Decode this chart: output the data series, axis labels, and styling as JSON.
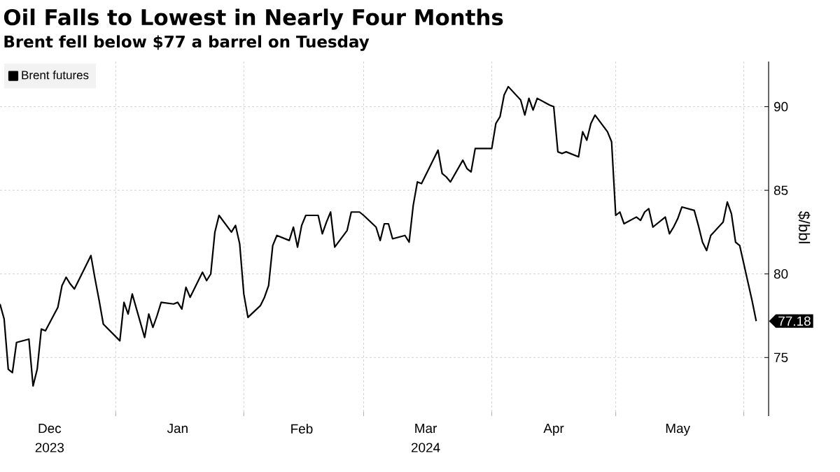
{
  "chart_data": {
    "type": "line",
    "title": "Oil Falls to Lowest in Nearly Four Months",
    "subtitle": "Brent fell below $77 a barrel on Tuesday",
    "ylabel": "$/bbl",
    "xlim": [
      "2023-12-04",
      "2024-06-07"
    ],
    "ylim": [
      71.5,
      92.7
    ],
    "yticks": [
      75,
      80,
      85,
      90
    ],
    "xticks": [
      {
        "value": "2024-01-01",
        "label": null
      },
      {
        "value": "2024-02-01",
        "label": null
      },
      {
        "value": "2024-03-01",
        "label": null
      },
      {
        "value": "2024-04-01",
        "label": null
      },
      {
        "value": "2024-05-01",
        "label": null
      },
      {
        "value": "2024-06-01",
        "label": null
      },
      {
        "value": "2023-12-16",
        "label": "Dec"
      },
      {
        "value": "2024-01-16",
        "label": "Jan"
      },
      {
        "value": "2024-02-15",
        "label": "Feb"
      },
      {
        "value": "2024-03-16",
        "label": "Mar"
      },
      {
        "value": "2024-04-16",
        "label": "Apr"
      },
      {
        "value": "2024-05-16",
        "label": "May"
      }
    ],
    "annotations": [
      "2023",
      "2024"
    ],
    "grid": true,
    "legend": "top left",
    "marker": "none",
    "series": [
      {
        "name": "Brent futures",
        "color": "#000000",
        "x": [
          "2023-12-04",
          "2023-12-05",
          "2023-12-06",
          "2023-12-07",
          "2023-12-08",
          "2023-12-11",
          "2023-12-12",
          "2023-12-13",
          "2023-12-14",
          "2023-12-15",
          "2023-12-18",
          "2023-12-19",
          "2023-12-20",
          "2023-12-21",
          "2023-12-22",
          "2023-12-26",
          "2023-12-27",
          "2023-12-28",
          "2023-12-29",
          "2024-01-02",
          "2024-01-03",
          "2024-01-04",
          "2024-01-05",
          "2024-01-08",
          "2024-01-09",
          "2024-01-10",
          "2024-01-11",
          "2024-01-12",
          "2024-01-15",
          "2024-01-16",
          "2024-01-17",
          "2024-01-18",
          "2024-01-19",
          "2024-01-22",
          "2024-01-23",
          "2024-01-24",
          "2024-01-25",
          "2024-01-26",
          "2024-01-29",
          "2024-01-30",
          "2024-01-31",
          "2024-02-01",
          "2024-02-02",
          "2024-02-05",
          "2024-02-06",
          "2024-02-07",
          "2024-02-08",
          "2024-02-09",
          "2024-02-12",
          "2024-02-13",
          "2024-02-14",
          "2024-02-15",
          "2024-02-16",
          "2024-02-19",
          "2024-02-20",
          "2024-02-21",
          "2024-02-22",
          "2024-02-23",
          "2024-02-26",
          "2024-02-27",
          "2024-02-28",
          "2024-02-29",
          "2024-03-01",
          "2024-03-04",
          "2024-03-05",
          "2024-03-06",
          "2024-03-07",
          "2024-03-08",
          "2024-03-11",
          "2024-03-12",
          "2024-03-13",
          "2024-03-14",
          "2024-03-15",
          "2024-03-18",
          "2024-03-19",
          "2024-03-20",
          "2024-03-21",
          "2024-03-22",
          "2024-03-25",
          "2024-03-26",
          "2024-03-27",
          "2024-03-28",
          "2024-04-01",
          "2024-04-02",
          "2024-04-03",
          "2024-04-04",
          "2024-04-05",
          "2024-04-08",
          "2024-04-09",
          "2024-04-10",
          "2024-04-11",
          "2024-04-12",
          "2024-04-15",
          "2024-04-16",
          "2024-04-17",
          "2024-04-18",
          "2024-04-19",
          "2024-04-22",
          "2024-04-23",
          "2024-04-24",
          "2024-04-25",
          "2024-04-26",
          "2024-04-29",
          "2024-04-30",
          "2024-05-01",
          "2024-05-02",
          "2024-05-03",
          "2024-05-06",
          "2024-05-07",
          "2024-05-08",
          "2024-05-09",
          "2024-05-10",
          "2024-05-13",
          "2024-05-14",
          "2024-05-15",
          "2024-05-16",
          "2024-05-17",
          "2024-05-20",
          "2024-05-21",
          "2024-05-22",
          "2024-05-23",
          "2024-05-24",
          "2024-05-27",
          "2024-05-28",
          "2024-05-29",
          "2024-05-30",
          "2024-05-31",
          "2024-06-03",
          "2024-06-04"
        ],
        "values": [
          78.2,
          77.3,
          74.3,
          74.1,
          75.9,
          76.1,
          73.3,
          74.3,
          76.7,
          76.6,
          78.0,
          79.3,
          79.8,
          79.4,
          79.1,
          81.1,
          79.7,
          78.4,
          77.0,
          76.0,
          78.3,
          77.6,
          78.8,
          76.2,
          77.6,
          76.8,
          77.5,
          78.3,
          78.2,
          78.3,
          77.9,
          79.2,
          78.6,
          80.1,
          79.6,
          80.0,
          82.5,
          83.5,
          82.5,
          82.9,
          81.8,
          78.8,
          77.4,
          78.1,
          78.6,
          79.3,
          81.7,
          82.3,
          82.0,
          82.8,
          81.6,
          82.9,
          83.5,
          83.5,
          82.4,
          83.1,
          83.7,
          81.6,
          82.6,
          83.7,
          83.7,
          83.7,
          83.5,
          82.8,
          82.0,
          83.0,
          83.0,
          82.1,
          82.3,
          81.9,
          84.1,
          85.5,
          85.4,
          86.9,
          87.4,
          86.0,
          85.8,
          85.5,
          86.8,
          86.3,
          86.1,
          87.5,
          87.5,
          89.0,
          89.4,
          90.7,
          91.2,
          90.4,
          89.5,
          90.5,
          89.8,
          90.5,
          90.1,
          90.0,
          87.3,
          87.2,
          87.3,
          87.0,
          88.5,
          88.0,
          89.0,
          89.5,
          88.5,
          87.9,
          83.5,
          83.7,
          83.0,
          83.4,
          83.2,
          83.7,
          83.9,
          82.8,
          83.4,
          82.4,
          82.8,
          83.3,
          84.0,
          83.8,
          82.9,
          81.9,
          81.4,
          82.3,
          83.1,
          84.3,
          83.6,
          81.9,
          81.7,
          78.4,
          77.18
        ],
        "value_labels": [
          null,
          null,
          null,
          null,
          null,
          null,
          null,
          null,
          null,
          null,
          null,
          null,
          null,
          null,
          null,
          null,
          null,
          null,
          null,
          null,
          null,
          null,
          null,
          null,
          null,
          null,
          null,
          null,
          null,
          null,
          null,
          null,
          null,
          null,
          null,
          null,
          null,
          null,
          null,
          null,
          null,
          null,
          null,
          null,
          null,
          null,
          null,
          null,
          null,
          null,
          null,
          null,
          null,
          null,
          null,
          null,
          null,
          null,
          null,
          null,
          null,
          null,
          null,
          null,
          null,
          null,
          null,
          null,
          null,
          null,
          null,
          null,
          null,
          null,
          null,
          null,
          null,
          null,
          null,
          null,
          null,
          null,
          null,
          null,
          null,
          null,
          null,
          null,
          null,
          null,
          null,
          null,
          null,
          null,
          null,
          null,
          null,
          null,
          null,
          null,
          null,
          null,
          null,
          null,
          null,
          null,
          null,
          null,
          null,
          null,
          null,
          null,
          null,
          null,
          null,
          null,
          null,
          null,
          null,
          null,
          null,
          null,
          null,
          null,
          null,
          null,
          null,
          null,
          "77.18"
        ]
      }
    ]
  }
}
